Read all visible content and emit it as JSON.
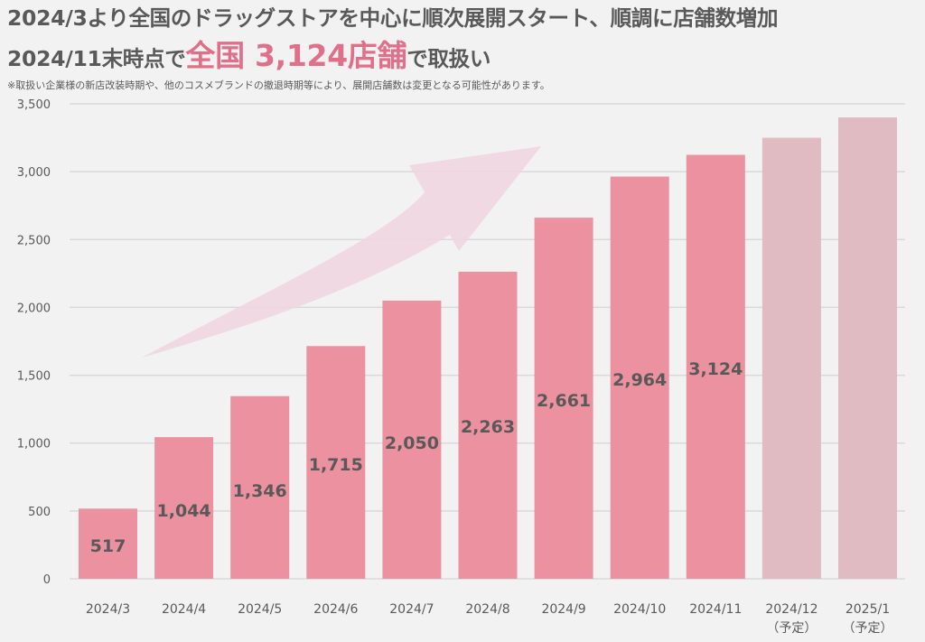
{
  "header": {
    "line1": "2024/3より全国のドラッグストアを中心に順次展開スタート、順調に店舗数増加",
    "line2_prefix": "2024/11末時点で",
    "line2_accent": "全国 3,124店舗",
    "line2_suffix": "で取扱い",
    "note": "※取扱い企業様の新店改装時期や、他のコスメブランドの撤退時期等により、展開店舗数は変更となる可能性があります。"
  },
  "colors": {
    "actual_bar": "#eb919f",
    "planned_bar": "#e0bbc2",
    "accent_text": "#e0708a",
    "arrow": "#f0d5e0",
    "grid": "#d9d9d9"
  },
  "chart_data": {
    "type": "bar",
    "title": "2024/11末時点で全国 3,124店舗で取扱い",
    "xlabel": "",
    "ylabel": "",
    "ylim": [
      0,
      3500
    ],
    "yticks": [
      0,
      500,
      1000,
      1500,
      2000,
      2500,
      3000,
      3500
    ],
    "ytick_labels": [
      "0",
      "500",
      "1,000",
      "1,500",
      "2,000",
      "2,500",
      "3,000",
      "3,500"
    ],
    "grid": true,
    "legend": "none",
    "categories": [
      "2024/3",
      "2024/4",
      "2024/5",
      "2024/6",
      "2024/7",
      "2024/8",
      "2024/9",
      "2024/10",
      "2024/11",
      "2024/12",
      "2025/1"
    ],
    "category_sublabels": [
      "",
      "",
      "",
      "",
      "",
      "",
      "",
      "",
      "",
      "（予定）",
      "（予定）"
    ],
    "values": [
      517,
      1044,
      1346,
      1715,
      2050,
      2263,
      2661,
      2964,
      3124,
      3250,
      3400
    ],
    "data_labels": [
      "517",
      "1,044",
      "1,346",
      "1,715",
      "2,050",
      "2,263",
      "2,661",
      "2,964",
      "3,124",
      "",
      ""
    ],
    "planned": [
      false,
      false,
      false,
      false,
      false,
      false,
      false,
      false,
      false,
      true,
      true
    ],
    "annotation": "upward-trend-arrow"
  }
}
